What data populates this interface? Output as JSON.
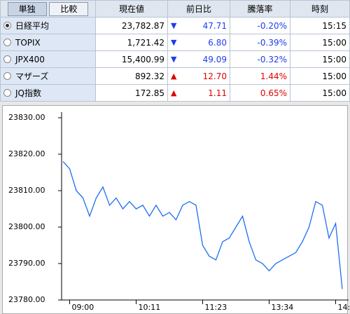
{
  "table": {
    "tabs": [
      "単独",
      "比較"
    ],
    "headers": [
      "現在値",
      "前日比",
      "騰落率",
      "時刻"
    ],
    "rows": [
      {
        "name": "日経平均",
        "price": "23,782.87",
        "arrow": "▼",
        "change": "47.71",
        "pct": "-0.20%",
        "time": "15:15",
        "color": "#1f3cf0",
        "selected": true
      },
      {
        "name": "TOPIX",
        "price": "1,721.42",
        "arrow": "▼",
        "change": "6.80",
        "pct": "-0.39%",
        "time": "15:00",
        "color": "#1f3cf0",
        "selected": false
      },
      {
        "name": "JPX400",
        "price": "15,400.99",
        "arrow": "▼",
        "change": "49.09",
        "pct": "-0.32%",
        "time": "15:00",
        "color": "#1f3cf0",
        "selected": false
      },
      {
        "name": "マザーズ",
        "price": "892.32",
        "arrow": "▲",
        "change": "12.70",
        "pct": "1.44%",
        "time": "15:00",
        "color": "#e00000",
        "selected": false
      },
      {
        "name": "JQ指数",
        "price": "172.85",
        "arrow": "▲",
        "change": "1.11",
        "pct": "0.65%",
        "time": "15:00",
        "color": "#e00000",
        "selected": false
      }
    ]
  },
  "chart_data": {
    "type": "line",
    "x": [
      null,
      "09:00",
      null,
      null,
      null,
      null,
      null,
      null,
      null,
      null,
      null,
      "10:11",
      null,
      null,
      null,
      null,
      null,
      null,
      null,
      null,
      null,
      "11:23",
      null,
      null,
      null,
      null,
      null,
      null,
      null,
      null,
      null,
      "13:34",
      null,
      null,
      null,
      null,
      null,
      null,
      null,
      null,
      null,
      "14:",
      null
    ],
    "series": [
      {
        "color": "#1e6ff0",
        "values": [
          23818,
          23816,
          23810,
          23808,
          23803,
          23808,
          23811,
          23806,
          23808,
          23805,
          23807,
          23805,
          23806,
          23803,
          23806,
          23803,
          23804,
          23802,
          23806,
          23807,
          23806,
          23795,
          23792,
          23791,
          23796,
          23797,
          23800,
          23803,
          23796,
          23791,
          23790,
          23788,
          23790,
          23791,
          23792,
          23793,
          23796,
          23800,
          23807,
          23806,
          23797,
          23801,
          23783
        ]
      }
    ],
    "ylim": [
      23780,
      23830
    ],
    "yticks": [
      {
        "value": 23780,
        "label": "23780.00"
      },
      {
        "value": 23790,
        "label": "23790.00"
      },
      {
        "value": 23800,
        "label": "23800.00"
      },
      {
        "value": 23810,
        "label": "23810.00"
      },
      {
        "value": 23820,
        "label": "23820.00"
      },
      {
        "value": 23830,
        "label": "23830.00"
      }
    ],
    "grid": false
  }
}
